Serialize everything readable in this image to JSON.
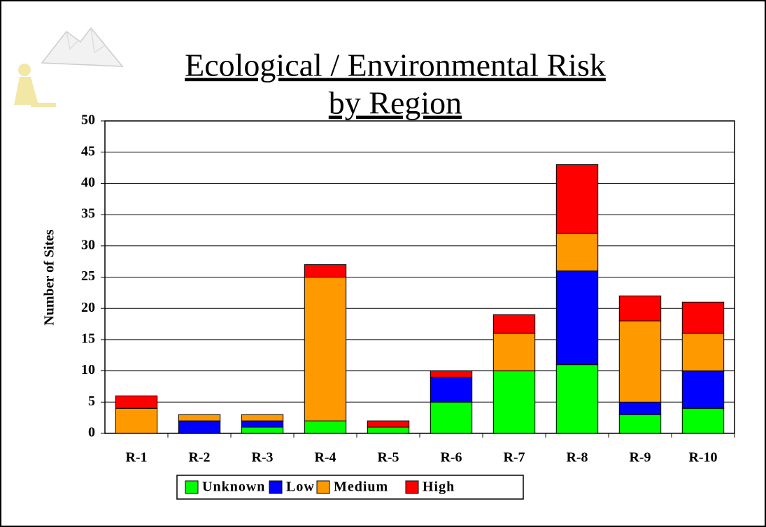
{
  "chart_data": {
    "type": "stacked_bar",
    "title_lines": [
      "Ecological / Environmental Risk",
      "by Region"
    ],
    "y_label": "Number of Sites",
    "categories": [
      "R-1",
      "R-2",
      "R-3",
      "R-4",
      "R-5",
      "R-6",
      "R-7",
      "R-8",
      "R-9",
      "R-10"
    ],
    "series": [
      {
        "name": "Unknown",
        "color": "#00ff00",
        "values": [
          0,
          0,
          1,
          2,
          1,
          5,
          10,
          11,
          3,
          4
        ]
      },
      {
        "name": "Low",
        "color": "#0000ff",
        "values": [
          0,
          2,
          1,
          0,
          0,
          4,
          0,
          15,
          2,
          6
        ]
      },
      {
        "name": "Medium",
        "color": "#ff9900",
        "values": [
          4,
          1,
          1,
          23,
          0,
          0,
          6,
          6,
          13,
          6
        ]
      },
      {
        "name": "High",
        "color": "#ff0000",
        "values": [
          2,
          0,
          0,
          2,
          1,
          1,
          3,
          11,
          4,
          5
        ]
      }
    ],
    "ylim": [
      0,
      50
    ],
    "yticks": [
      0,
      5,
      10,
      15,
      20,
      25,
      30,
      35,
      40,
      45,
      50
    ],
    "grid": true
  }
}
